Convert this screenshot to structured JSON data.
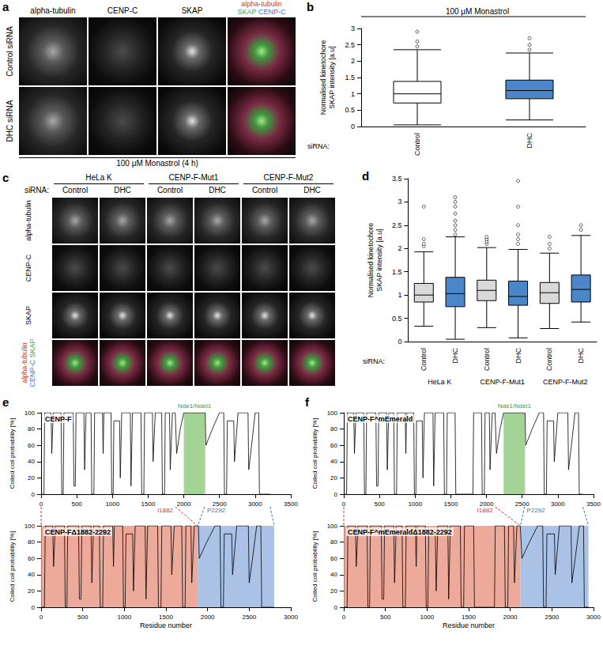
{
  "image_panels": [
    {
      "panel": "a",
      "columns": [
        "alpha-tubulin",
        "CENP-C",
        "SKAP"
      ],
      "merge": [
        [
          {
            "text": "alpha-tubulin",
            "color": "#e0301e"
          }
        ],
        [
          {
            "text": "SKAP",
            "color": "#2fa84f"
          },
          {
            "text": "CENP-C",
            "color": "#3b6fd6"
          }
        ]
      ],
      "rows": [
        "Control siRNA",
        "DHC siRNA"
      ],
      "caption": "100 μM Monastrol (4 h)"
    },
    {
      "panel": "c",
      "groups": [
        "HeLa K",
        "CENP-F-Mut1",
        "CENP-F-Mut2"
      ],
      "sirna_label": "siRNA:",
      "conditions": [
        "Control",
        "DHC"
      ],
      "rows": [
        "alpha-tubulin",
        "CENP-C",
        "SKAP"
      ],
      "merge": [
        [
          {
            "text": "alpha-tubulin",
            "color": "#e0301e"
          }
        ],
        [
          {
            "text": "CENP-C",
            "color": "#3b6fd6"
          },
          {
            "text": "SKAP",
            "color": "#2fa84f"
          }
        ]
      ]
    }
  ],
  "chart_data": [
    {
      "panel": "b",
      "type": "boxplot",
      "title": "100 μM Monastrol",
      "categories": [
        "Control",
        "DHC"
      ],
      "values": [
        [
          0.05,
          0.72,
          1.0,
          1.38,
          2.35
        ],
        [
          0.2,
          0.85,
          1.1,
          1.42,
          2.25
        ]
      ],
      "outliers": [
        [
          2.45,
          2.6,
          2.9
        ],
        [
          2.35,
          2.5,
          2.7
        ]
      ],
      "colors": [
        "#ffffff",
        "#4a86c8"
      ],
      "ylabel": "Normalised kinetochore SKAP intensity [a.u]",
      "xlabel": "siRNA:",
      "ylim": [
        0,
        3
      ],
      "yticks": [
        0,
        0.5,
        1,
        1.5,
        2,
        2.5,
        3
      ],
      "grid": false
    },
    {
      "panel": "d",
      "type": "boxplot",
      "categories": [
        "Control",
        "DHC",
        "Control",
        "DHC",
        "Control",
        "DHC"
      ],
      "groups": [
        "HeLa K",
        "CENP-F-Mut1",
        "CENP-F-Mut2"
      ],
      "values": [
        [
          0.33,
          0.85,
          1.0,
          1.25,
          1.93
        ],
        [
          0.05,
          0.75,
          1.03,
          1.38,
          2.25
        ],
        [
          0.3,
          0.88,
          1.1,
          1.32,
          2.02
        ],
        [
          0.08,
          0.78,
          0.97,
          1.3,
          1.98
        ],
        [
          0.28,
          0.82,
          1.05,
          1.27,
          1.9
        ],
        [
          0.42,
          0.85,
          1.12,
          1.43,
          2.28
        ]
      ],
      "outliers": [
        [
          2.05,
          2.1,
          2.2,
          2.9
        ],
        [
          2.3,
          2.4,
          2.5,
          2.6,
          2.75,
          2.9,
          3.0,
          3.1
        ],
        [
          2.1,
          2.15,
          2.2,
          2.25
        ],
        [
          2.1,
          2.2,
          2.3,
          2.5,
          2.9,
          3.45
        ],
        [
          2.0,
          2.1,
          2.25
        ],
        [
          2.4,
          2.5
        ]
      ],
      "colors": [
        "#d9d9d9",
        "#4a86c8",
        "#d9d9d9",
        "#4a86c8",
        "#d9d9d9",
        "#4a86c8"
      ],
      "ylabel": "Normalised kinetochore SKAP intensity [a.u]",
      "xlabel": "siRNA:",
      "ylim": [
        0,
        3.5
      ],
      "yticks": [
        0,
        0.5,
        1,
        1.5,
        2,
        2.5,
        3,
        3.5
      ],
      "grid": false
    },
    {
      "panel": "e",
      "type": "line",
      "grid": false,
      "color": "#000000",
      "deletion": {
        "start": {
          "label": "I1882",
          "x": 1882,
          "color": "#d9352b"
        },
        "end": {
          "label": "P2292",
          "x": 2292,
          "color": "#2f74c0"
        }
      },
      "plots": [
        {
          "title": "CENP-F",
          "ylabel": "Coiled coil probability [%]",
          "xlim": [
            0,
            3500
          ],
          "xticks": [
            0,
            500,
            1000,
            1500,
            2000,
            2500,
            3000,
            3500
          ],
          "ylim": [
            0,
            100
          ],
          "yticks": [
            0,
            20,
            40,
            60,
            80,
            100
          ],
          "x": [
            0,
            40,
            50,
            140,
            150,
            170,
            280,
            290,
            310,
            320,
            450,
            460,
            480,
            490,
            600,
            610,
            630,
            700,
            710,
            740,
            750,
            860,
            870,
            880,
            980,
            990,
            1010,
            1020,
            1100,
            1110,
            1130,
            1250,
            1260,
            1280,
            1400,
            1410,
            1440,
            1450,
            1560,
            1570,
            1600,
            1690,
            1700,
            1730,
            1740,
            1800,
            1810,
            1840,
            1880,
            1900,
            1950,
            2000,
            2300,
            2310,
            2400,
            2500,
            2560,
            2570,
            2600,
            2610,
            2700,
            2710,
            2760,
            2900,
            2910,
            2950,
            3000,
            3050,
            3060,
            3210
          ],
          "values": [
            0,
            0,
            100,
            100,
            50,
            100,
            100,
            0,
            0,
            100,
            100,
            10,
            10,
            100,
            100,
            30,
            100,
            100,
            0,
            0,
            100,
            100,
            50,
            100,
            100,
            0,
            0,
            90,
            90,
            20,
            100,
            100,
            10,
            100,
            100,
            0,
            0,
            100,
            100,
            40,
            100,
            100,
            0,
            0,
            100,
            100,
            30,
            100,
            100,
            50,
            80,
            100,
            100,
            60,
            80,
            100,
            100,
            0,
            0,
            90,
            90,
            40,
            100,
            100,
            30,
            60,
            100,
            100,
            0,
            0
          ],
          "regions": [
            {
              "from": 2000,
              "to": 2300,
              "color": "#8cc97a",
              "label": "Nde1/Ndel1",
              "label_color": "#3a9c3a"
            }
          ]
        },
        {
          "title": "CENP-FΔ1882-2292",
          "ylabel": "Coiled coil probability [%]",
          "xlabel": "Residue number",
          "xlim": [
            0,
            3000
          ],
          "xticks": [
            0,
            500,
            1000,
            1500,
            2000,
            2500,
            3000
          ],
          "ylim": [
            0,
            100
          ],
          "yticks": [
            0,
            20,
            40,
            60,
            80,
            100
          ],
          "x": [
            0,
            40,
            50,
            140,
            150,
            170,
            280,
            290,
            310,
            320,
            450,
            460,
            480,
            490,
            600,
            610,
            630,
            700,
            710,
            740,
            750,
            860,
            870,
            880,
            980,
            990,
            1010,
            1020,
            1100,
            1110,
            1130,
            1250,
            1260,
            1280,
            1400,
            1410,
            1440,
            1450,
            1560,
            1570,
            1600,
            1690,
            1700,
            1730,
            1740,
            1800,
            1810,
            1840,
            1880,
            1890,
            1900,
            1990,
            2090,
            2150,
            2160,
            2190,
            2200,
            2290,
            2300,
            2350,
            2490,
            2500,
            2540,
            2590,
            2640,
            2650,
            2800
          ],
          "values": [
            0,
            0,
            100,
            100,
            50,
            100,
            100,
            0,
            0,
            100,
            100,
            10,
            10,
            100,
            100,
            30,
            100,
            100,
            0,
            0,
            100,
            100,
            50,
            100,
            100,
            0,
            0,
            90,
            90,
            20,
            100,
            100,
            10,
            100,
            100,
            0,
            0,
            100,
            100,
            40,
            100,
            100,
            0,
            0,
            100,
            100,
            30,
            100,
            100,
            100,
            60,
            80,
            100,
            100,
            0,
            0,
            90,
            90,
            40,
            100,
            100,
            30,
            60,
            100,
            100,
            0,
            0
          ],
          "regions": [
            {
              "from": 0,
              "to": 1882,
              "color": "#e89480"
            },
            {
              "from": 1882,
              "to": 2800,
              "color": "#93b3de"
            }
          ]
        }
      ]
    },
    {
      "panel": "f",
      "type": "line",
      "grid": false,
      "color": "#000000",
      "deletion": {
        "start": {
          "label": "I1882",
          "x": 2122,
          "color": "#d9352b"
        },
        "end": {
          "label": "P2292",
          "x": 2532,
          "color": "#2f74c0"
        }
      },
      "plots": [
        {
          "title": "CENP-F^mEmerald",
          "ylabel": "Coiled coil probability [%]",
          "xlim": [
            0,
            3500
          ],
          "xticks": [
            0,
            500,
            1000,
            1500,
            2000,
            2500,
            3000,
            3500
          ],
          "ylim": [
            0,
            100
          ],
          "yticks": [
            0,
            20,
            40,
            60,
            80,
            100
          ],
          "x": [
            0,
            40,
            50,
            140,
            150,
            170,
            280,
            290,
            310,
            320,
            450,
            460,
            480,
            490,
            600,
            610,
            630,
            700,
            710,
            740,
            750,
            860,
            870,
            880,
            980,
            990,
            1010,
            1020,
            1100,
            1110,
            1130,
            1250,
            1260,
            1280,
            1400,
            1410,
            1440,
            1450,
            1560,
            1570,
            1810,
            1820,
            1840,
            1930,
            1940,
            1970,
            1980,
            2040,
            2050,
            2080,
            2120,
            2140,
            2190,
            2240,
            2540,
            2550,
            2640,
            2740,
            2800,
            2810,
            2840,
            2850,
            2940,
            2950,
            3000,
            3140,
            3150,
            3190,
            3240,
            3290,
            3300,
            3350
          ],
          "values": [
            0,
            0,
            100,
            100,
            50,
            100,
            100,
            0,
            0,
            100,
            100,
            10,
            10,
            100,
            100,
            30,
            100,
            100,
            0,
            0,
            100,
            100,
            50,
            100,
            100,
            0,
            0,
            90,
            90,
            20,
            100,
            100,
            10,
            100,
            100,
            0,
            0,
            100,
            100,
            0,
            0,
            100,
            100,
            100,
            0,
            0,
            100,
            100,
            30,
            100,
            100,
            50,
            80,
            100,
            100,
            60,
            80,
            100,
            100,
            0,
            0,
            90,
            90,
            40,
            100,
            100,
            30,
            60,
            100,
            100,
            0,
            0
          ],
          "regions": [
            {
              "from": 2240,
              "to": 2540,
              "color": "#8cc97a",
              "label": "Nde1/Ndel1",
              "label_color": "#3a9c3a"
            }
          ]
        },
        {
          "title": "CENP-F^mEmeraldΔ1882-2292",
          "ylabel": "Coiled coil probability [%]",
          "xlabel": "Residue number",
          "xlim": [
            0,
            3000
          ],
          "xticks": [
            0,
            500,
            1000,
            1500,
            2000,
            2500,
            3000
          ],
          "ylim": [
            0,
            100
          ],
          "yticks": [
            0,
            20,
            40,
            60,
            80,
            100
          ],
          "x": [
            0,
            40,
            50,
            140,
            150,
            170,
            280,
            290,
            310,
            320,
            450,
            460,
            480,
            490,
            600,
            610,
            630,
            700,
            710,
            740,
            750,
            860,
            870,
            880,
            980,
            990,
            1010,
            1020,
            1100,
            1110,
            1130,
            1250,
            1260,
            1280,
            1400,
            1410,
            1440,
            1450,
            1560,
            1570,
            1810,
            1820,
            1840,
            1930,
            1940,
            1970,
            1980,
            2040,
            2050,
            2080,
            2120,
            2140,
            2230,
            2330,
            2390,
            2400,
            2430,
            2440,
            2530,
            2540,
            2590,
            2730,
            2740,
            2780,
            2830,
            2880,
            2890,
            2940
          ],
          "values": [
            0,
            0,
            100,
            100,
            50,
            100,
            100,
            0,
            0,
            100,
            100,
            10,
            10,
            100,
            100,
            30,
            100,
            100,
            0,
            0,
            100,
            100,
            50,
            100,
            100,
            0,
            0,
            90,
            90,
            20,
            100,
            100,
            10,
            100,
            100,
            0,
            0,
            100,
            100,
            0,
            0,
            100,
            100,
            100,
            0,
            0,
            100,
            100,
            30,
            100,
            100,
            60,
            80,
            100,
            100,
            0,
            0,
            90,
            90,
            40,
            100,
            100,
            30,
            60,
            100,
            100,
            0,
            0
          ],
          "regions": [
            {
              "from": 0,
              "to": 2122,
              "color": "#e89480"
            },
            {
              "from": 2122,
              "to": 2940,
              "color": "#93b3de"
            }
          ]
        }
      ]
    }
  ]
}
